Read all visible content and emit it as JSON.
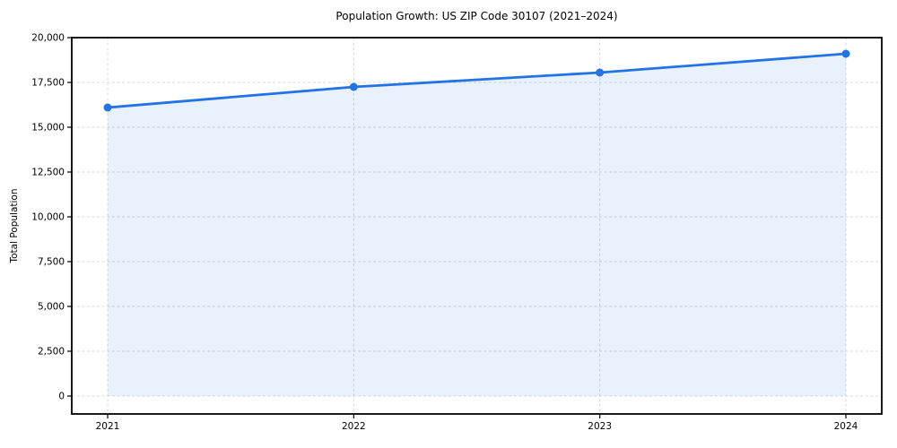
{
  "chart_data": {
    "type": "line",
    "title": "Population Growth: US ZIP Code 30107 (2021–2024)",
    "xlabel": "",
    "ylabel": "Total Population",
    "categories": [
      "2021",
      "2022",
      "2023",
      "2024"
    ],
    "series": [
      {
        "name": "Total Population",
        "values": [
          16100,
          17250,
          18050,
          19100
        ]
      }
    ],
    "ylim": [
      0,
      20000
    ],
    "ytick_step": 2500,
    "ytick_labels": [
      "0",
      "2,500",
      "5,000",
      "7,500",
      "10,000",
      "12,500",
      "15,000",
      "17,500",
      "20,000"
    ],
    "grid": true,
    "grid_style": "dashed",
    "legend": "none",
    "area_fill": true,
    "markers": true,
    "colors": {
      "line": "#2273e6",
      "marker": "#2273e6",
      "fill": "rgba(34, 115, 230, 0.10)",
      "grid": "#d8d8d8",
      "spine": "#000000",
      "text": "#000000",
      "background": "#ffffff"
    }
  }
}
